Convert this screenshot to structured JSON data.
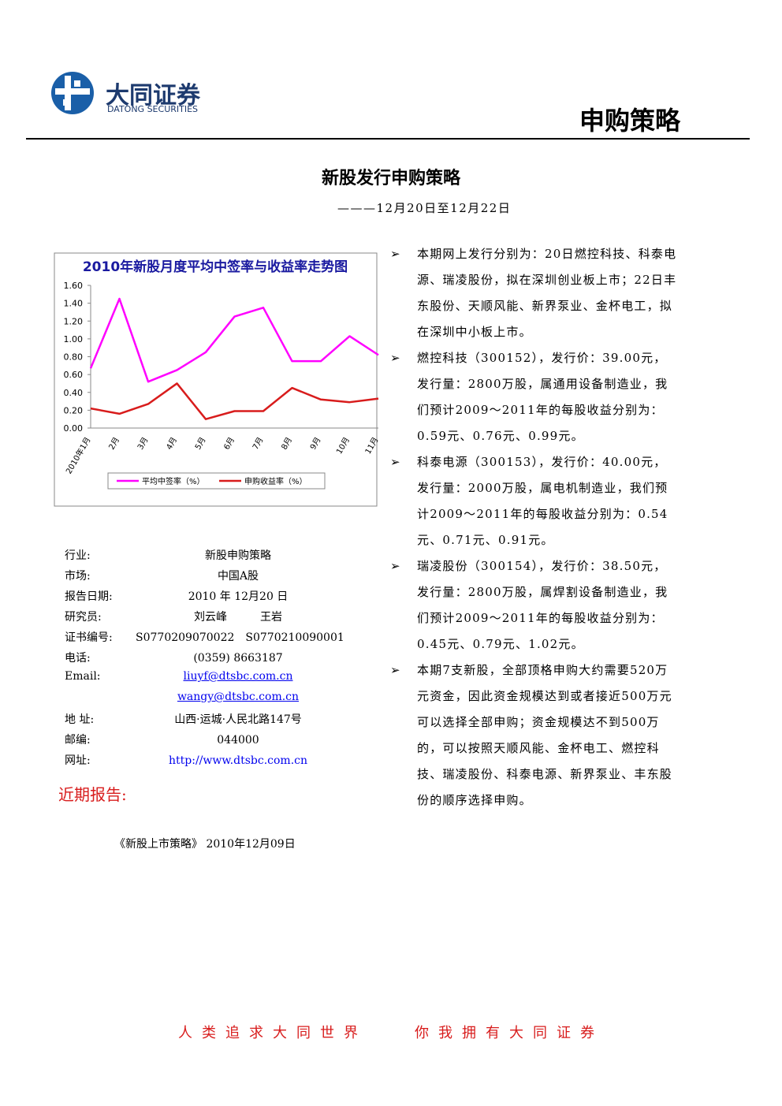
{
  "header": {
    "logo_cn": "大同证券",
    "logo_en": "DATONG SECURITIES",
    "category": "申购策略"
  },
  "title": "新股发行申购策略",
  "subtitle": "———12月20日至12月22日",
  "chart_data": {
    "type": "line",
    "title": "2010年新股月度平均中签率与收益率走势图",
    "categories": [
      "2010年1月",
      "2月",
      "3月",
      "4月",
      "5月",
      "6月",
      "7月",
      "8月",
      "9月",
      "10月",
      "11月"
    ],
    "series": [
      {
        "name": "平均中签率（%）",
        "color": "#ff00ff",
        "values": [
          0.67,
          1.45,
          0.52,
          0.65,
          0.85,
          1.25,
          1.35,
          0.75,
          0.75,
          1.03,
          0.82
        ]
      },
      {
        "name": "申购收益率（%）",
        "color": "#d81c1c",
        "values": [
          0.22,
          0.16,
          0.27,
          0.5,
          0.1,
          0.19,
          0.19,
          0.45,
          0.32,
          0.29,
          0.33
        ]
      }
    ],
    "ylim": [
      0,
      1.6
    ],
    "yticks": [
      {
        "value": 0,
        "label": "0.00"
      },
      {
        "value": 0.2,
        "label": "0.20"
      },
      {
        "value": 0.4,
        "label": "0.40"
      },
      {
        "value": 0.6,
        "label": "0.60"
      },
      {
        "value": 0.8,
        "label": "0.80"
      },
      {
        "value": 1,
        "label": "1.00"
      },
      {
        "value": 1.2,
        "label": "1.20"
      },
      {
        "value": 1.4,
        "label": "1.40"
      },
      {
        "value": 1.6,
        "label": "1.60"
      }
    ],
    "legend": "bottom"
  },
  "info": [
    [
      "行业:",
      "新股申购策略"
    ],
    [
      "市场:",
      "中国A股"
    ],
    [
      "报告日期:",
      "2010 年 12月20 日"
    ],
    [
      "研究员:",
      "刘云峰　　　王岩"
    ],
    [
      "证书编号:",
      "S0770209070022　S0770210090001"
    ],
    [
      "电话:",
      "(0359) 8663187"
    ],
    [
      "Email:",
      "liuyf@dtsbc.com.cn"
    ],
    [
      "",
      "wangy@dtsbc.com.cn"
    ],
    [
      "地 址:",
      "山西·运城·人民北路147号"
    ],
    [
      "邮编:",
      "044000"
    ],
    [
      "网址:",
      "http://www.dtsbc.com.cn"
    ]
  ],
  "recent_heading": "近期报告:",
  "recent": [
    "《新股上市策略》 2010年12月09日"
  ],
  "bullets": [
    "本期网上发行分别为：20日燃控科技、科泰电源、瑞凌股份，拟在深圳创业板上市；22日丰东股份、天顺风能、新界泵业、金杯电工，拟在深圳中小板上市。",
    "燃控科技（300152），发行价：39.00元，发行量：2800万股，属通用设备制造业，我们预计2009～2011年的每股收益分别为：0.59元、0.76元、0.99元。",
    "科泰电源（300153），发行价：40.00元，发行量：2000万股，属电机制造业，我们预计2009～2011年的每股收益分别为：0.54元、0.71元、0.91元。",
    "瑞凌股份（300154），发行价：38.50元，发行量：2800万股，属焊割设备制造业，我们预计2009～2011年的每股收益分别为：0.45元、0.79元、1.02元。",
    "本期7支新股，全部顶格申购大约需要520万元资金，因此资金规模达到或者接近500万元可以选择全部申购；资金规模达不到500万的，可以按照天顺风能、金杯电工、燃控科技、瑞凌股份、科泰电源、新界泵业、丰东股份的顺序选择申购。"
  ],
  "footer": "人类追求大同世界　　你我拥有大同证券"
}
